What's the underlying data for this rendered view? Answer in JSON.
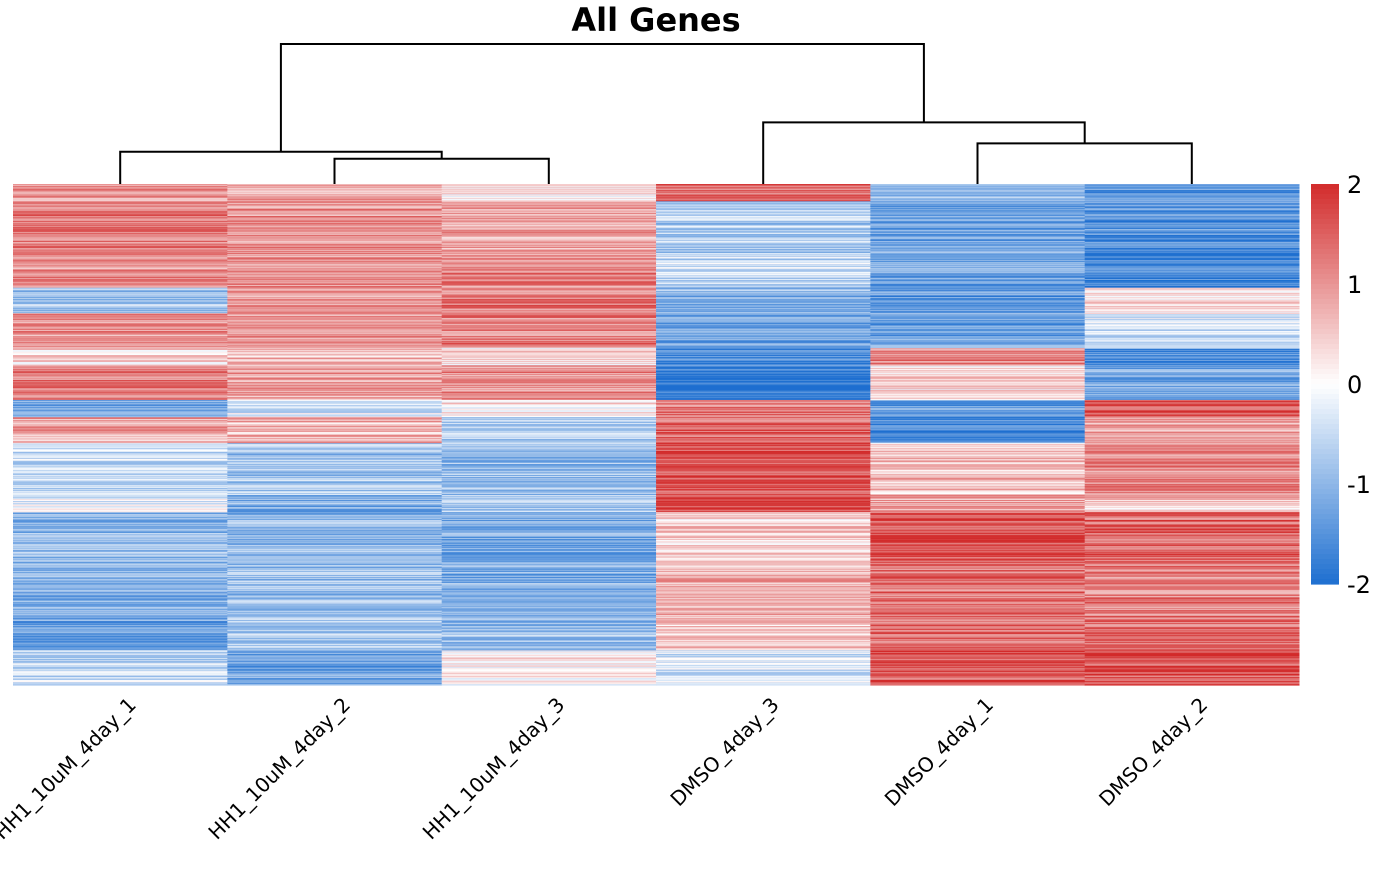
{
  "chart_data": {
    "type": "heatmap",
    "title": "All Genes",
    "xlabel": "",
    "ylabel": "",
    "columns": [
      "HH1_10uM_4day_1",
      "HH1_10uM_4day_2",
      "HH1_10uM_4day_3",
      "DMSO_4day_3",
      "DMSO_4day_1",
      "DMSO_4day_2"
    ],
    "row_dendrogram": false,
    "column_dendrogram": {
      "merges": [
        {
          "left": 1,
          "right": 2,
          "height": 0.18
        },
        {
          "left": 4,
          "right": 5,
          "height": 0.29
        },
        {
          "left": 0,
          "right": "m0",
          "height": 0.23
        },
        {
          "left": 3,
          "right": "m1",
          "height": 0.44
        },
        {
          "left": "m2",
          "right": "m3",
          "height": 1.0
        }
      ]
    },
    "row_profile_note": "row z-scores, rows ordered top to bottom; average segments",
    "segments": [
      {
        "rows": 20,
        "values": [
          0.9,
          0.8,
          0.3,
          1.3,
          -1.0,
          -1.4
        ]
      },
      {
        "rows": 60,
        "values": [
          1.2,
          1.0,
          0.8,
          -0.7,
          -1.2,
          -1.5
        ]
      },
      {
        "rows": 40,
        "values": [
          1.0,
          1.1,
          1.1,
          -0.5,
          -1.3,
          -1.7
        ]
      },
      {
        "rows": 30,
        "values": [
          -0.8,
          0.9,
          1.3,
          -1.0,
          -1.3,
          0.4
        ]
      },
      {
        "rows": 40,
        "values": [
          1.0,
          0.9,
          1.2,
          -1.2,
          -1.3,
          -0.4
        ]
      },
      {
        "rows": 20,
        "values": [
          0.4,
          0.7,
          0.3,
          -1.6,
          1.2,
          -1.5
        ]
      },
      {
        "rows": 40,
        "values": [
          1.2,
          0.9,
          1.0,
          -1.8,
          0.3,
          -1.2
        ]
      },
      {
        "rows": 20,
        "values": [
          -1.2,
          -0.3,
          0.2,
          1.2,
          -1.4,
          1.5
        ]
      },
      {
        "rows": 30,
        "values": [
          0.8,
          0.7,
          -0.6,
          1.4,
          -1.6,
          0.9
        ]
      },
      {
        "rows": 60,
        "values": [
          -0.5,
          -0.8,
          -0.9,
          1.6,
          0.6,
          1.1
        ]
      },
      {
        "rows": 20,
        "values": [
          -0.2,
          -1.1,
          -0.7,
          1.8,
          0.9,
          0.5
        ]
      },
      {
        "rows": 60,
        "values": [
          -1.0,
          -1.0,
          -1.2,
          0.4,
          1.5,
          1.4
        ]
      },
      {
        "rows": 60,
        "values": [
          -1.1,
          -0.9,
          -1.1,
          0.7,
          1.3,
          1.2
        ]
      },
      {
        "rows": 40,
        "values": [
          -1.3,
          -0.8,
          -0.9,
          0.6,
          1.4,
          1.3
        ]
      },
      {
        "rows": 40,
        "values": [
          -0.5,
          -1.2,
          0.1,
          -0.4,
          1.6,
          1.6
        ]
      }
    ],
    "colorbar": {
      "min": -2,
      "max": 2,
      "ticks": [
        "2",
        "1",
        "0",
        "-1",
        "-2"
      ],
      "colors": {
        "low": "#1e6fd0",
        "mid": "#ffffff",
        "high": "#d22b2b"
      }
    },
    "grid": false,
    "legend": "right"
  }
}
